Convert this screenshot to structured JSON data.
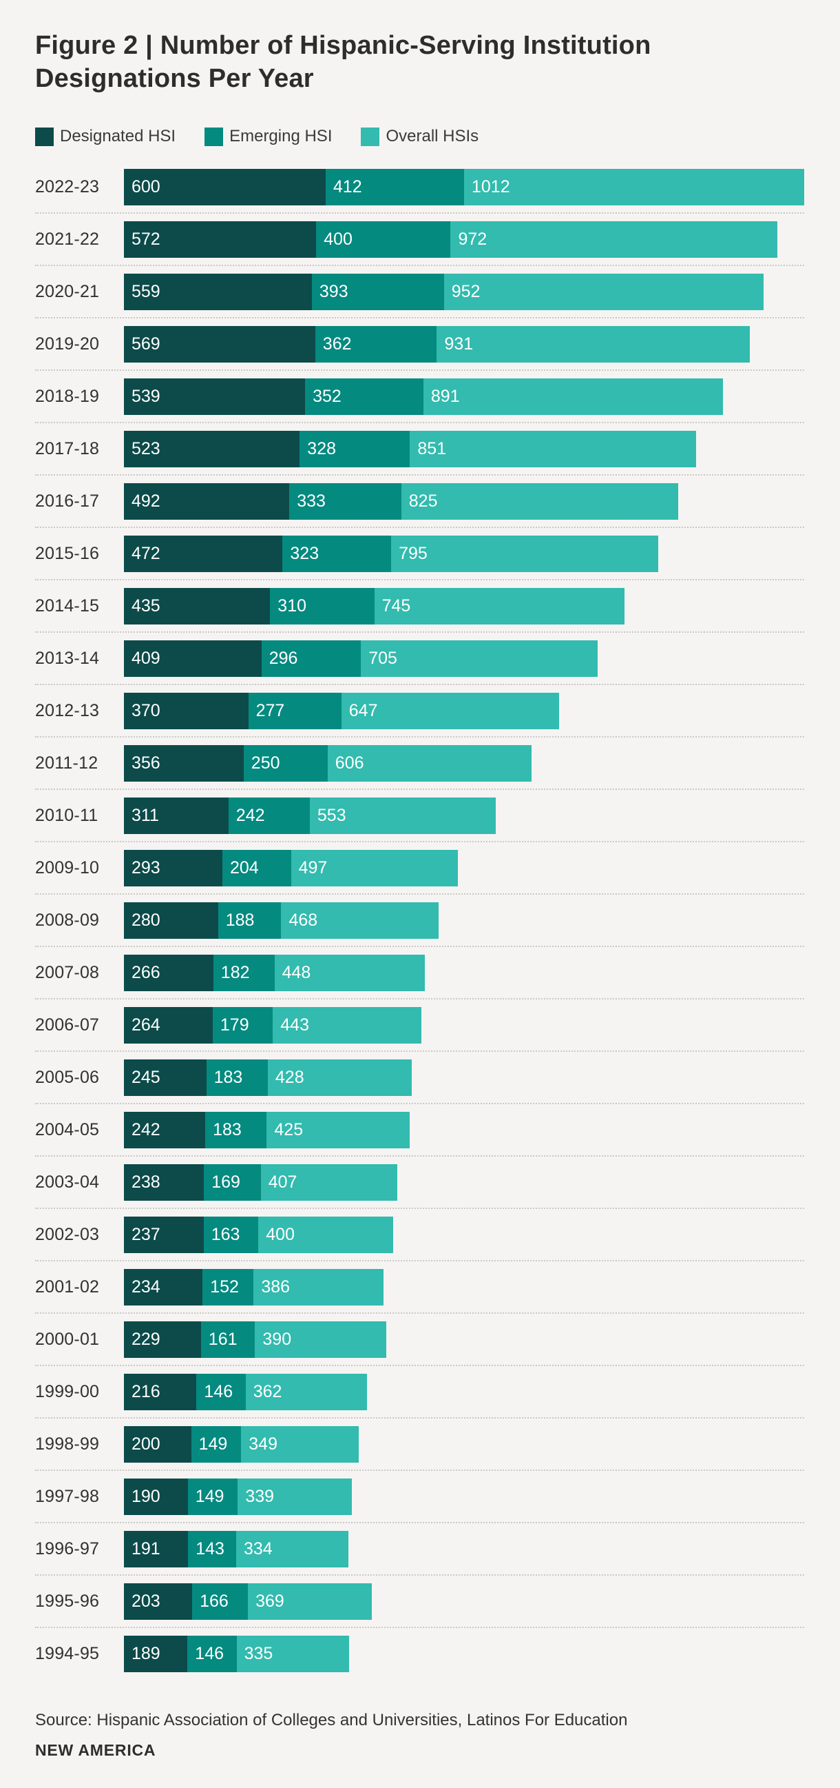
{
  "page": {
    "background": "#F5F4F2",
    "title_line1": "Figure 2 | Number of Hispanic-Serving Institution",
    "title_line2": "Designations Per Year",
    "source": "Source: Hispanic Association of Colleges and Universities, Latinos For Education",
    "brand": "NEW AMERICA"
  },
  "legend": [
    {
      "label": "Designated HSI",
      "color": "#0C4B4A"
    },
    {
      "label": "Emerging HSI",
      "color": "#058A80"
    },
    {
      "label": "Overall HSIs",
      "color": "#32BBAE"
    }
  ],
  "chart_data": {
    "type": "bar",
    "orientation": "horizontal",
    "stacked": true,
    "title": "Figure 2 | Number of Hispanic-Serving Institution Designations Per Year",
    "value_labels": "inside-left",
    "grid": false,
    "legend_position": "top",
    "categories": [
      "2022-23",
      "2021-22",
      "2020-21",
      "2019-20",
      "2018-19",
      "2017-18",
      "2016-17",
      "2015-16",
      "2014-15",
      "2013-14",
      "2012-13",
      "2011-12",
      "2010-11",
      "2009-10",
      "2008-09",
      "2007-08",
      "2006-07",
      "2005-06",
      "2004-05",
      "2003-04",
      "2002-03",
      "2001-02",
      "2000-01",
      "1999-00",
      "1998-99",
      "1997-98",
      "1996-97",
      "1995-96",
      "1994-95"
    ],
    "series": [
      {
        "name": "Designated HSI",
        "color": "#0C4B4A",
        "values": [
          600,
          572,
          559,
          569,
          539,
          523,
          492,
          472,
          435,
          409,
          370,
          356,
          311,
          293,
          280,
          266,
          264,
          245,
          242,
          238,
          237,
          234,
          229,
          216,
          200,
          190,
          191,
          203,
          189
        ]
      },
      {
        "name": "Emerging HSI",
        "color": "#058A80",
        "values": [
          412,
          400,
          393,
          362,
          352,
          328,
          333,
          323,
          310,
          296,
          277,
          250,
          242,
          204,
          188,
          182,
          179,
          183,
          183,
          169,
          163,
          152,
          161,
          146,
          149,
          149,
          143,
          166,
          146
        ]
      },
      {
        "name": "Overall HSIs",
        "color": "#32BBAE",
        "values": [
          1012,
          972,
          952,
          931,
          891,
          851,
          825,
          795,
          745,
          705,
          647,
          606,
          553,
          497,
          468,
          448,
          443,
          428,
          425,
          407,
          400,
          386,
          390,
          362,
          349,
          339,
          334,
          369,
          335
        ]
      }
    ],
    "x_max_stacked_total": 2024
  }
}
